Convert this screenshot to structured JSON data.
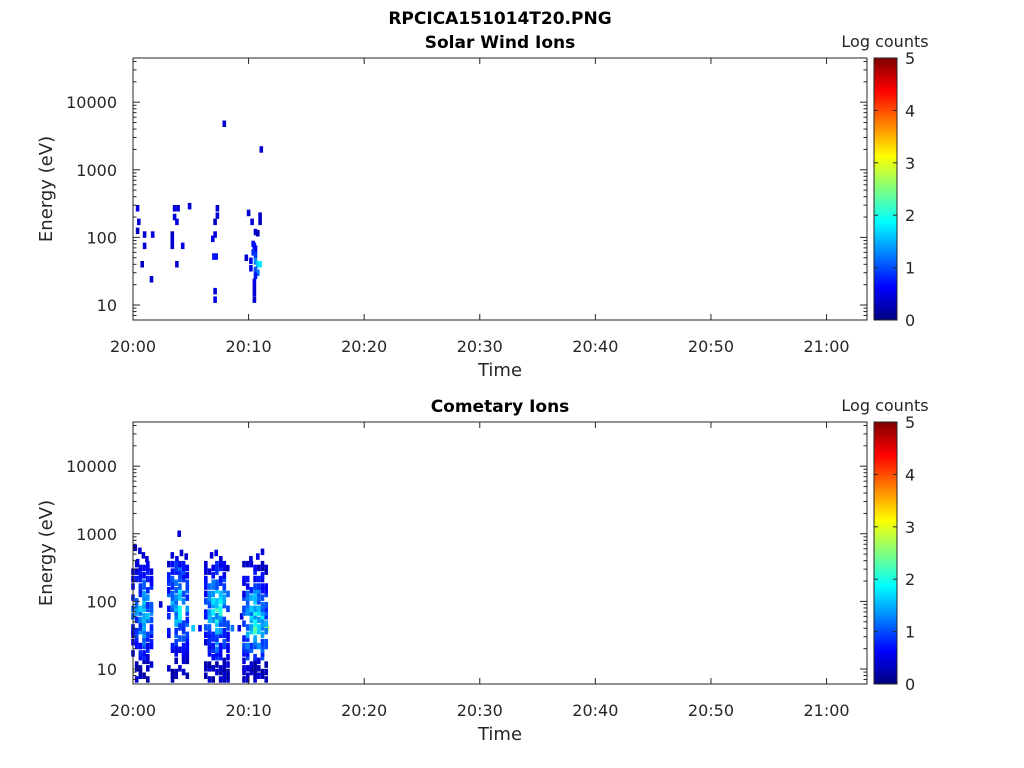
{
  "figure": {
    "title": "RPCICA151014T20.PNG"
  },
  "colors": {
    "axis": "#262626",
    "colormap": "jet",
    "colormap_stops": [
      "#00007f",
      "#0000ff",
      "#007fff",
      "#00ffff",
      "#7fff7f",
      "#ffff00",
      "#ff7f00",
      "#ff0000",
      "#7f0000"
    ]
  },
  "chart_data": [
    {
      "type": "heatmap",
      "title": "Solar Wind Ions",
      "xlabel": "Time",
      "ylabel": "Energy (eV)",
      "x_ticks": [
        "20:00",
        "20:10",
        "20:20",
        "20:30",
        "20:40",
        "20:50",
        "21:00"
      ],
      "x_tick_minutes": [
        0,
        10,
        20,
        30,
        40,
        50,
        60
      ],
      "xlim_minutes": [
        0,
        63.5
      ],
      "y_scale": "log",
      "ylim": [
        6,
        45000
      ],
      "y_ticks": [
        "10",
        "100",
        "1000",
        "10000"
      ],
      "y_tick_values": [
        10,
        100,
        1000,
        10000
      ],
      "colorbar": {
        "label": "Log counts",
        "range": [
          0,
          5
        ],
        "ticks": [
          "0",
          "1",
          "2",
          "3",
          "4",
          "5"
        ]
      },
      "points": [
        {
          "t": 0.4,
          "e": 270,
          "v": 0.5
        },
        {
          "t": 0.5,
          "e": 170,
          "v": 0.4
        },
        {
          "t": 0.4,
          "e": 125,
          "v": 0.3
        },
        {
          "t": 1.0,
          "e": 110,
          "v": 0.4
        },
        {
          "t": 1.0,
          "e": 75,
          "v": 0.4
        },
        {
          "t": 0.8,
          "e": 40,
          "v": 0.3
        },
        {
          "t": 1.7,
          "e": 110,
          "v": 0.5
        },
        {
          "t": 1.6,
          "e": 24,
          "v": 0.4
        },
        {
          "t": 3.6,
          "e": 270,
          "v": 0.5
        },
        {
          "t": 3.9,
          "e": 270,
          "v": 0.4
        },
        {
          "t": 3.6,
          "e": 200,
          "v": 0.4
        },
        {
          "t": 3.8,
          "e": 170,
          "v": 0.5
        },
        {
          "t": 3.4,
          "e": 110,
          "v": 0.3
        },
        {
          "t": 3.4,
          "e": 90,
          "v": 0.5
        },
        {
          "t": 3.4,
          "e": 75,
          "v": 0.4
        },
        {
          "t": 4.3,
          "e": 75,
          "v": 0.5
        },
        {
          "t": 3.8,
          "e": 40,
          "v": 0.4
        },
        {
          "t": 4.9,
          "e": 290,
          "v": 0.4
        },
        {
          "t": 7.3,
          "e": 270,
          "v": 0.4
        },
        {
          "t": 7.3,
          "e": 210,
          "v": 0.4
        },
        {
          "t": 7.1,
          "e": 170,
          "v": 0.3
        },
        {
          "t": 7.1,
          "e": 110,
          "v": 0.4
        },
        {
          "t": 6.9,
          "e": 95,
          "v": 0.5
        },
        {
          "t": 7.0,
          "e": 52,
          "v": 0.7
        },
        {
          "t": 7.2,
          "e": 52,
          "v": 0.7
        },
        {
          "t": 7.1,
          "e": 16,
          "v": 0.4
        },
        {
          "t": 7.1,
          "e": 12,
          "v": 0.5
        },
        {
          "t": 7.9,
          "e": 4800,
          "v": 0.4
        },
        {
          "t": 10.0,
          "e": 230,
          "v": 0.4
        },
        {
          "t": 10.3,
          "e": 170,
          "v": 0.4
        },
        {
          "t": 11.0,
          "e": 210,
          "v": 0.4
        },
        {
          "t": 11.0,
          "e": 170,
          "v": 0.3
        },
        {
          "t": 10.6,
          "e": 120,
          "v": 0.4
        },
        {
          "t": 10.8,
          "e": 115,
          "v": 0.3
        },
        {
          "t": 10.4,
          "e": 80,
          "v": 0.6
        },
        {
          "t": 10.5,
          "e": 75,
          "v": 0.7
        },
        {
          "t": 10.6,
          "e": 68,
          "v": 0.5
        },
        {
          "t": 10.4,
          "e": 60,
          "v": 0.8
        },
        {
          "t": 10.6,
          "e": 55,
          "v": 0.9
        },
        {
          "t": 9.8,
          "e": 50,
          "v": 0.4
        },
        {
          "t": 10.2,
          "e": 45,
          "v": 0.5
        },
        {
          "t": 10.6,
          "e": 44,
          "v": 1.3
        },
        {
          "t": 10.8,
          "e": 40,
          "v": 1.6
        },
        {
          "t": 11.0,
          "e": 40,
          "v": 1.8
        },
        {
          "t": 10.2,
          "e": 35,
          "v": 0.5
        },
        {
          "t": 10.6,
          "e": 33,
          "v": 1.0
        },
        {
          "t": 10.8,
          "e": 30,
          "v": 1.2
        },
        {
          "t": 10.6,
          "e": 27,
          "v": 0.7
        },
        {
          "t": 10.5,
          "e": 22,
          "v": 0.5
        },
        {
          "t": 10.5,
          "e": 18,
          "v": 0.4
        },
        {
          "t": 10.5,
          "e": 15,
          "v": 0.4
        },
        {
          "t": 10.5,
          "e": 12,
          "v": 0.4
        },
        {
          "t": 11.1,
          "e": 2000,
          "v": 0.4
        }
      ]
    },
    {
      "type": "heatmap",
      "title": "Cometary Ions",
      "xlabel": "Time",
      "ylabel": "Energy (eV)",
      "x_ticks": [
        "20:00",
        "20:10",
        "20:20",
        "20:30",
        "20:40",
        "20:50",
        "21:00"
      ],
      "x_tick_minutes": [
        0,
        10,
        20,
        30,
        40,
        50,
        60
      ],
      "xlim_minutes": [
        0,
        63.5
      ],
      "y_scale": "log",
      "ylim": [
        6,
        45000
      ],
      "y_ticks": [
        "10",
        "100",
        "1000",
        "10000"
      ],
      "y_tick_values": [
        10,
        100,
        1000,
        10000
      ],
      "colorbar": {
        "label": "Log counts",
        "range": [
          0,
          5
        ],
        "ticks": [
          "0",
          "1",
          "2",
          "3",
          "4",
          "5"
        ]
      },
      "sparse_points": [
        {
          "t": 0.2,
          "e": 620,
          "v": 0.3
        },
        {
          "t": 0.6,
          "e": 560,
          "v": 0.4
        },
        {
          "t": 0.9,
          "e": 480,
          "v": 0.4
        },
        {
          "t": 0.4,
          "e": 380,
          "v": 0.5
        },
        {
          "t": 1.2,
          "e": 420,
          "v": 0.4
        },
        {
          "t": 3.4,
          "e": 480,
          "v": 0.4
        },
        {
          "t": 3.8,
          "e": 420,
          "v": 0.5
        },
        {
          "t": 4.2,
          "e": 520,
          "v": 0.4
        },
        {
          "t": 4.6,
          "e": 460,
          "v": 0.4
        },
        {
          "t": 4.0,
          "e": 1000,
          "v": 0.4
        },
        {
          "t": 6.8,
          "e": 480,
          "v": 0.4
        },
        {
          "t": 7.2,
          "e": 520,
          "v": 0.5
        },
        {
          "t": 7.6,
          "e": 420,
          "v": 0.4
        },
        {
          "t": 10.2,
          "e": 420,
          "v": 0.4
        },
        {
          "t": 10.8,
          "e": 460,
          "v": 0.5
        },
        {
          "t": 11.2,
          "e": 540,
          "v": 0.4
        },
        {
          "t": 8.2,
          "e": 310,
          "v": 0.3
        },
        {
          "t": 2.4,
          "e": 90,
          "v": 0.4
        },
        {
          "t": 5.8,
          "e": 40,
          "v": 0.5
        },
        {
          "t": 9.4,
          "e": 60,
          "v": 0.4
        },
        {
          "t": 9.2,
          "e": 40,
          "v": 0.4
        },
        {
          "t": 11.6,
          "e": 40,
          "v": 2.6
        },
        {
          "t": 11.3,
          "e": 45,
          "v": 2.4
        },
        {
          "t": 8.6,
          "e": 40,
          "v": 1.2
        },
        {
          "t": 5.2,
          "e": 40,
          "v": 1.6
        }
      ],
      "bursts": [
        {
          "t0": 0.0,
          "t1": 1.8,
          "v_peak": 2.0,
          "e_peak": 70
        },
        {
          "t0": 3.1,
          "t1": 4.9,
          "v_peak": 2.2,
          "e_peak": 90
        },
        {
          "t0": 6.3,
          "t1": 8.3,
          "v_peak": 2.3,
          "e_peak": 70
        },
        {
          "t0": 9.6,
          "t1": 11.6,
          "v_peak": 2.6,
          "e_peak": 45
        }
      ]
    }
  ]
}
